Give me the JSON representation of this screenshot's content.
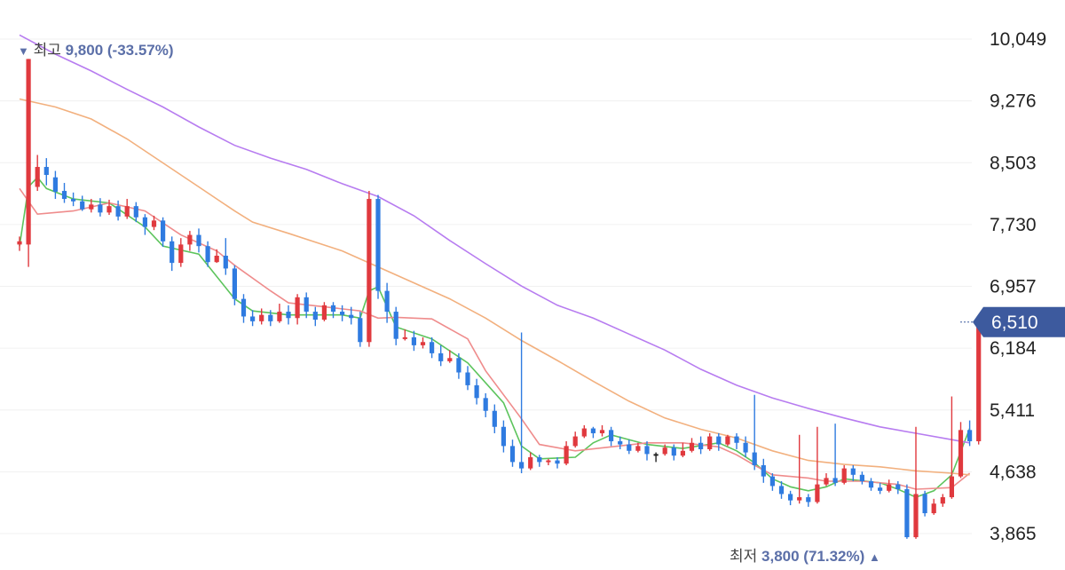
{
  "chart_data": {
    "type": "candlestick",
    "y_axis": {
      "side": "right",
      "ticks": [
        "10,049",
        "9,276",
        "8,503",
        "7,730",
        "6,957",
        "6,184",
        "5,411",
        "4,638",
        "3,865"
      ],
      "range": [
        3865,
        10049
      ]
    },
    "current_price": {
      "label": "6,510",
      "value": 6510,
      "color": "#3d5a9e"
    },
    "annotations": {
      "high": {
        "marker": "▼",
        "label": "최고",
        "value_text": "9,800 (-33.57%)",
        "value": 9800
      },
      "low": {
        "marker": "▲",
        "label": "최저",
        "value_text": "3,800 (71.32%)",
        "value": 3800
      }
    },
    "colors": {
      "up": "#e0393e",
      "down": "#2f7be0",
      "neutral": "#222222"
    },
    "moving_averages": [
      {
        "color": "#5cc45c",
        "points": [
          [
            0,
            7460
          ],
          [
            1,
            8200
          ],
          [
            2,
            8320
          ],
          [
            3,
            8180
          ],
          [
            6,
            8050
          ],
          [
            10,
            8000
          ],
          [
            14,
            7700
          ],
          [
            16,
            7460
          ],
          [
            20,
            7360
          ],
          [
            24,
            6800
          ],
          [
            26,
            6650
          ],
          [
            30,
            6600
          ],
          [
            36,
            6600
          ],
          [
            38,
            6560
          ],
          [
            39,
            6900
          ],
          [
            40,
            6950
          ],
          [
            42,
            6450
          ],
          [
            46,
            6300
          ],
          [
            50,
            6000
          ],
          [
            54,
            5500
          ],
          [
            56,
            4960
          ],
          [
            58,
            4800
          ],
          [
            62,
            4820
          ],
          [
            64,
            5000
          ],
          [
            66,
            5100
          ],
          [
            70,
            4980
          ],
          [
            74,
            4930
          ],
          [
            78,
            5000
          ],
          [
            80,
            4900
          ],
          [
            82,
            4750
          ],
          [
            84,
            4550
          ],
          [
            86,
            4450
          ],
          [
            88,
            4400
          ],
          [
            90,
            4450
          ],
          [
            92,
            4550
          ],
          [
            96,
            4500
          ],
          [
            98,
            4420
          ],
          [
            100,
            4320
          ],
          [
            102,
            4400
          ],
          [
            104,
            4600
          ],
          [
            106,
            5180
          ]
        ]
      },
      {
        "color": "#ef8c8c",
        "points": [
          [
            0,
            8180
          ],
          [
            2,
            7860
          ],
          [
            6,
            7900
          ],
          [
            10,
            8000
          ],
          [
            14,
            7900
          ],
          [
            18,
            7600
          ],
          [
            22,
            7400
          ],
          [
            24,
            7220
          ],
          [
            28,
            6900
          ],
          [
            30,
            6750
          ],
          [
            34,
            6700
          ],
          [
            38,
            6650
          ],
          [
            40,
            6560
          ],
          [
            42,
            6570
          ],
          [
            46,
            6550
          ],
          [
            50,
            6300
          ],
          [
            52,
            5900
          ],
          [
            56,
            5300
          ],
          [
            58,
            4980
          ],
          [
            62,
            4900
          ],
          [
            66,
            4950
          ],
          [
            70,
            5000
          ],
          [
            74,
            5000
          ],
          [
            78,
            4950
          ],
          [
            80,
            4850
          ],
          [
            82,
            4720
          ],
          [
            84,
            4600
          ],
          [
            88,
            4560
          ],
          [
            90,
            4520
          ],
          [
            94,
            4520
          ],
          [
            98,
            4480
          ],
          [
            100,
            4420
          ],
          [
            104,
            4440
          ],
          [
            106,
            4620
          ]
        ]
      },
      {
        "color": "#f2b07e",
        "points": [
          [
            0,
            9300
          ],
          [
            4,
            9200
          ],
          [
            8,
            9050
          ],
          [
            12,
            8800
          ],
          [
            16,
            8500
          ],
          [
            20,
            8200
          ],
          [
            24,
            7900
          ],
          [
            26,
            7760
          ],
          [
            30,
            7620
          ],
          [
            36,
            7400
          ],
          [
            40,
            7200
          ],
          [
            44,
            7000
          ],
          [
            48,
            6800
          ],
          [
            52,
            6560
          ],
          [
            56,
            6280
          ],
          [
            60,
            6030
          ],
          [
            64,
            5770
          ],
          [
            68,
            5520
          ],
          [
            72,
            5310
          ],
          [
            76,
            5170
          ],
          [
            80,
            5060
          ],
          [
            84,
            4900
          ],
          [
            88,
            4780
          ],
          [
            92,
            4730
          ],
          [
            96,
            4700
          ],
          [
            100,
            4650
          ],
          [
            104,
            4620
          ],
          [
            106,
            4600
          ]
        ]
      },
      {
        "color": "#b77cf0",
        "points": [
          [
            0,
            10100
          ],
          [
            4,
            9860
          ],
          [
            8,
            9650
          ],
          [
            12,
            9420
          ],
          [
            16,
            9200
          ],
          [
            20,
            8950
          ],
          [
            24,
            8720
          ],
          [
            28,
            8560
          ],
          [
            32,
            8420
          ],
          [
            36,
            8240
          ],
          [
            40,
            8080
          ],
          [
            44,
            7840
          ],
          [
            48,
            7530
          ],
          [
            52,
            7240
          ],
          [
            56,
            6960
          ],
          [
            60,
            6720
          ],
          [
            64,
            6560
          ],
          [
            68,
            6360
          ],
          [
            72,
            6160
          ],
          [
            76,
            5920
          ],
          [
            80,
            5720
          ],
          [
            84,
            5560
          ],
          [
            88,
            5430
          ],
          [
            92,
            5310
          ],
          [
            96,
            5200
          ],
          [
            100,
            5120
          ],
          [
            104,
            5040
          ],
          [
            106,
            5000
          ]
        ]
      }
    ],
    "candles": [
      [
        7480,
        7520,
        7400,
        7580
      ],
      [
        7480,
        9800,
        7200,
        9800
      ],
      [
        8200,
        8450,
        8150,
        8600
      ],
      [
        8450,
        8350,
        8220,
        8560
      ],
      [
        8320,
        8140,
        8050,
        8400
      ],
      [
        8150,
        8050,
        8000,
        8250
      ],
      [
        8050,
        8020,
        7960,
        8130
      ],
      [
        8020,
        7920,
        7900,
        8090
      ],
      [
        7920,
        7980,
        7880,
        8050
      ],
      [
        7980,
        7880,
        7830,
        8060
      ],
      [
        7880,
        7960,
        7850,
        8040
      ],
      [
        7960,
        7830,
        7780,
        8030
      ],
      [
        7830,
        7960,
        7800,
        8050
      ],
      [
        7960,
        7820,
        7760,
        8010
      ],
      [
        7820,
        7700,
        7600,
        7860
      ],
      [
        7700,
        7780,
        7660,
        7840
      ],
      [
        7780,
        7520,
        7450,
        7820
      ],
      [
        7520,
        7250,
        7150,
        7580
      ],
      [
        7250,
        7480,
        7200,
        7560
      ],
      [
        7480,
        7600,
        7400,
        7650
      ],
      [
        7600,
        7460,
        7380,
        7680
      ],
      [
        7460,
        7260,
        7200,
        7520
      ],
      [
        7260,
        7340,
        7250,
        7420
      ],
      [
        7340,
        7180,
        7100,
        7560
      ],
      [
        7180,
        6800,
        6720,
        7220
      ],
      [
        6800,
        6580,
        6500,
        6860
      ],
      [
        6580,
        6520,
        6460,
        6660
      ],
      [
        6520,
        6600,
        6480,
        6680
      ],
      [
        6600,
        6520,
        6460,
        6660
      ],
      [
        6520,
        6640,
        6500,
        6740
      ],
      [
        6640,
        6560,
        6480,
        6720
      ],
      [
        6560,
        6820,
        6480,
        6860
      ],
      [
        6820,
        6640,
        6560,
        6880
      ],
      [
        6640,
        6540,
        6460,
        6700
      ],
      [
        6540,
        6720,
        6520,
        6760
      ],
      [
        6720,
        6640,
        6560,
        6760
      ],
      [
        6640,
        6600,
        6520,
        6720
      ],
      [
        6600,
        6560,
        6480,
        6700
      ],
      [
        6560,
        6260,
        6200,
        6640
      ],
      [
        6260,
        8050,
        6200,
        8150
      ],
      [
        8050,
        6900,
        6800,
        8100
      ],
      [
        6900,
        6640,
        6500,
        7000
      ],
      [
        6640,
        6300,
        6220,
        6700
      ],
      [
        6300,
        6320,
        6280,
        6420
      ],
      [
        6320,
        6220,
        6150,
        6400
      ],
      [
        6220,
        6260,
        6180,
        6320
      ],
      [
        6260,
        6120,
        6060,
        6320
      ],
      [
        6120,
        6020,
        5960,
        6220
      ],
      [
        6020,
        6060,
        6000,
        6160
      ],
      [
        6060,
        5880,
        5800,
        6120
      ],
      [
        5880,
        5720,
        5660,
        5960
      ],
      [
        5720,
        5560,
        5480,
        5800
      ],
      [
        5560,
        5400,
        5320,
        5620
      ],
      [
        5400,
        5200,
        5120,
        5480
      ],
      [
        5200,
        4960,
        4880,
        5280
      ],
      [
        4960,
        4760,
        4700,
        5040
      ],
      [
        4760,
        4680,
        4620,
        6380
      ],
      [
        4680,
        4820,
        4660,
        4880
      ],
      [
        4820,
        4760,
        4700,
        4850
      ],
      [
        4760,
        4780,
        4720,
        4800
      ],
      [
        4780,
        4740,
        4680,
        4820
      ],
      [
        4740,
        4960,
        4720,
        5020
      ],
      [
        4960,
        5080,
        4940,
        5140
      ],
      [
        5080,
        5180,
        5060,
        5220
      ],
      [
        5180,
        5120,
        5060,
        5200
      ],
      [
        5120,
        5160,
        5080,
        5220
      ],
      [
        5160,
        5020,
        4960,
        5200
      ],
      [
        5020,
        4980,
        4920,
        5080
      ],
      [
        4980,
        4900,
        4860,
        5040
      ],
      [
        4900,
        4960,
        4880,
        5000
      ],
      [
        4960,
        4860,
        4780,
        5020
      ],
      [
        4860,
        4860,
        4760,
        4880
      ],
      [
        4860,
        4940,
        4840,
        4980
      ],
      [
        4940,
        4840,
        4780,
        4980
      ],
      [
        4840,
        4900,
        4820,
        5000
      ],
      [
        4900,
        5000,
        4880,
        5060
      ],
      [
        5000,
        4920,
        4860,
        5080
      ],
      [
        4920,
        5080,
        4900,
        5120
      ],
      [
        5080,
        4980,
        4900,
        5120
      ],
      [
        4980,
        5080,
        4960,
        5100
      ],
      [
        5080,
        5000,
        4920,
        5120
      ],
      [
        5000,
        4880,
        4820,
        5080
      ],
      [
        4880,
        4720,
        4660,
        5600
      ],
      [
        4720,
        4580,
        4500,
        4800
      ],
      [
        4580,
        4460,
        4400,
        4620
      ],
      [
        4460,
        4360,
        4300,
        4520
      ],
      [
        4360,
        4280,
        4220,
        4400
      ],
      [
        4280,
        4320,
        4240,
        5100
      ],
      [
        4320,
        4260,
        4200,
        4360
      ],
      [
        4260,
        4480,
        4240,
        5200
      ],
      [
        4480,
        4560,
        4460,
        4620
      ],
      [
        4560,
        4500,
        4460,
        5240
      ],
      [
        4500,
        4680,
        4480,
        4720
      ],
      [
        4680,
        4600,
        4520,
        4720
      ],
      [
        4600,
        4520,
        4480,
        4640
      ],
      [
        4520,
        4440,
        4400,
        4560
      ],
      [
        4440,
        4400,
        4360,
        4500
      ],
      [
        4400,
        4480,
        4380,
        4540
      ],
      [
        4480,
        4420,
        4360,
        4520
      ],
      [
        4420,
        3820,
        3800,
        4480
      ],
      [
        3820,
        4360,
        3800,
        5200
      ],
      [
        4360,
        4120,
        4080,
        4400
      ],
      [
        4120,
        4240,
        4100,
        4300
      ],
      [
        4240,
        4320,
        4200,
        4360
      ],
      [
        4320,
        4580,
        4300,
        5580
      ],
      [
        4580,
        5160,
        4560,
        5260
      ],
      [
        5160,
        5020,
        4960,
        5280
      ],
      [
        5020,
        6510,
        4980,
        6510
      ]
    ]
  }
}
